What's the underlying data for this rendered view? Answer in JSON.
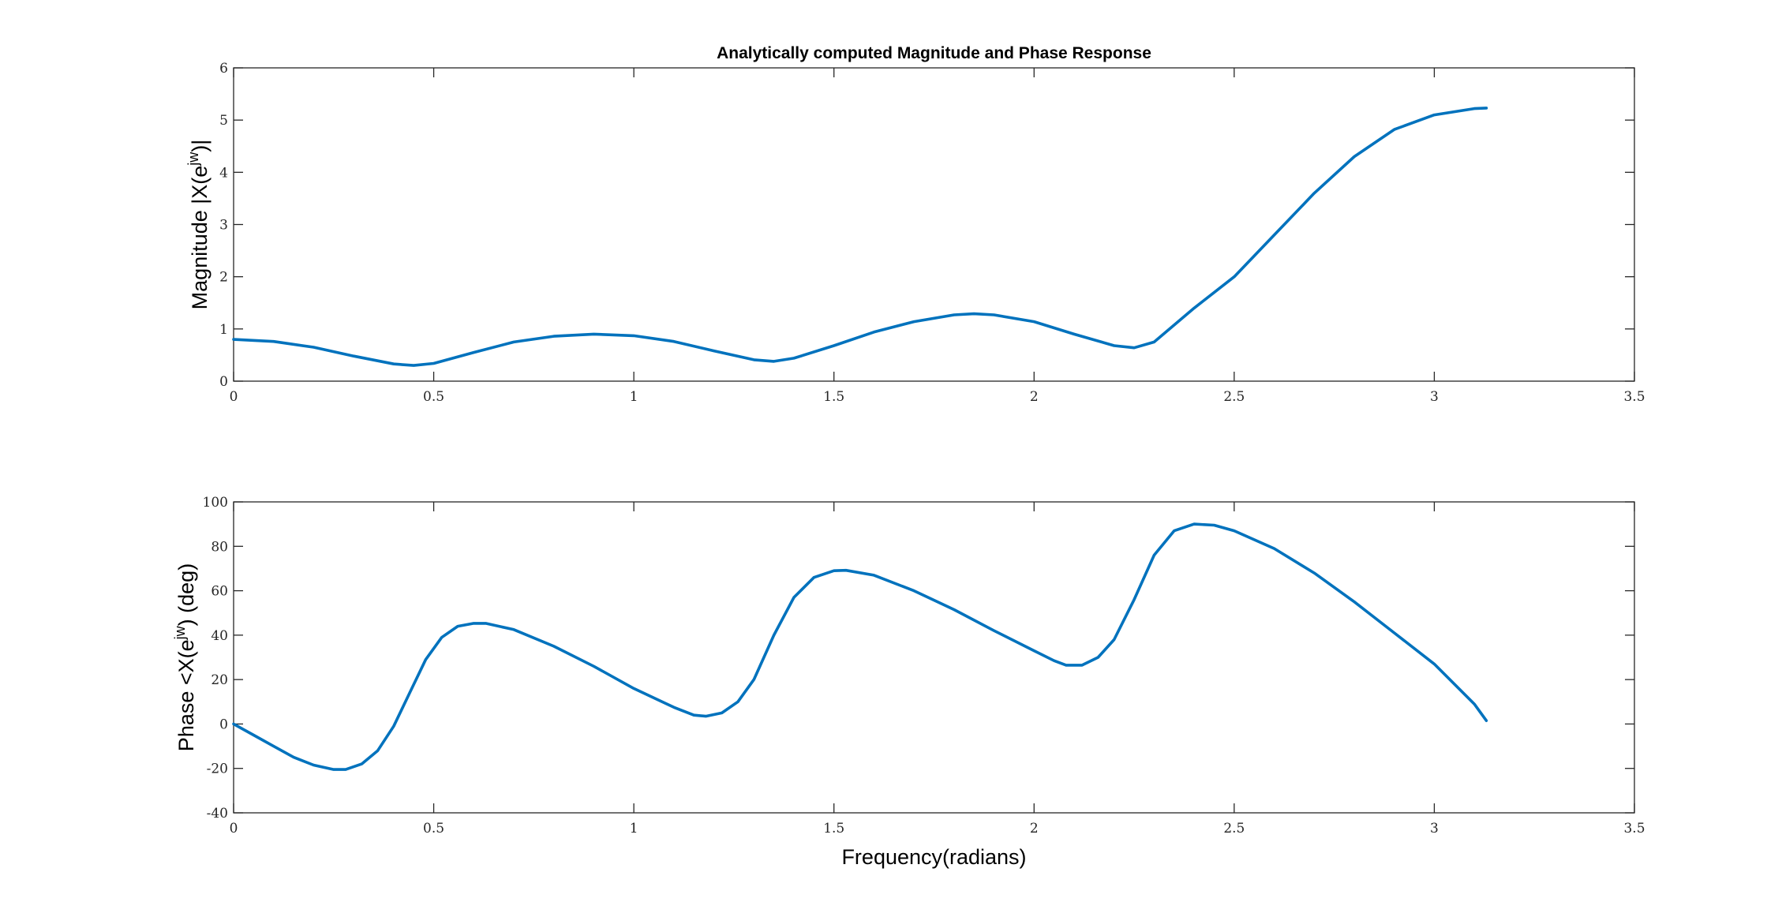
{
  "chart_data": [
    {
      "type": "line",
      "title": "Analytically computed Magnitude and Phase Response",
      "xlabel": "",
      "ylabel": {
        "prefix": "Magnitude |X(e",
        "sup": "jw",
        "suffix": ")|"
      },
      "xlim": [
        0,
        3.5
      ],
      "ylim": [
        0,
        6
      ],
      "xticks": [
        "0",
        "0.5",
        "1",
        "1.5",
        "2",
        "2.5",
        "3",
        "3.5"
      ],
      "yticks": [
        "0",
        "1",
        "2",
        "3",
        "4",
        "5",
        "6"
      ],
      "grid": false,
      "color": "#0072BD",
      "series": [
        {
          "x": [
            0,
            0.1,
            0.2,
            0.3,
            0.4,
            0.45,
            0.5,
            0.6,
            0.7,
            0.8,
            0.9,
            1.0,
            1.1,
            1.2,
            1.3,
            1.35,
            1.4,
            1.5,
            1.6,
            1.7,
            1.8,
            1.85,
            1.9,
            2.0,
            2.1,
            2.2,
            2.25,
            2.3,
            2.4,
            2.5,
            2.6,
            2.7,
            2.8,
            2.9,
            3.0,
            3.1,
            3.13
          ],
          "y": [
            0.8,
            0.76,
            0.65,
            0.48,
            0.33,
            0.3,
            0.34,
            0.55,
            0.75,
            0.86,
            0.9,
            0.87,
            0.76,
            0.58,
            0.41,
            0.38,
            0.44,
            0.68,
            0.94,
            1.14,
            1.27,
            1.29,
            1.27,
            1.14,
            0.9,
            0.68,
            0.64,
            0.75,
            1.4,
            2.0,
            2.8,
            3.6,
            4.3,
            4.82,
            5.1,
            5.22,
            5.23
          ]
        }
      ]
    },
    {
      "type": "line",
      "title": "",
      "xlabel": "Frequency(radians)",
      "ylabel": {
        "prefix": "Phase <X(e",
        "sup": "jw",
        "suffix": ") (deg)"
      },
      "xlim": [
        0,
        3.5
      ],
      "ylim": [
        -40,
        100
      ],
      "xticks": [
        "0",
        "0.5",
        "1",
        "1.5",
        "2",
        "2.5",
        "3",
        "3.5"
      ],
      "yticks": [
        "-40",
        "-20",
        "0",
        "20",
        "40",
        "60",
        "80",
        "100"
      ],
      "grid": false,
      "color": "#0072BD",
      "series": [
        {
          "x": [
            0,
            0.05,
            0.1,
            0.15,
            0.2,
            0.25,
            0.28,
            0.32,
            0.36,
            0.4,
            0.44,
            0.48,
            0.52,
            0.56,
            0.6,
            0.63,
            0.7,
            0.8,
            0.9,
            1.0,
            1.1,
            1.15,
            1.18,
            1.22,
            1.26,
            1.3,
            1.35,
            1.4,
            1.45,
            1.5,
            1.53,
            1.6,
            1.7,
            1.8,
            1.9,
            2.0,
            2.05,
            2.08,
            2.12,
            2.16,
            2.2,
            2.25,
            2.3,
            2.35,
            2.4,
            2.45,
            2.5,
            2.6,
            2.7,
            2.8,
            2.9,
            3.0,
            3.1,
            3.13
          ],
          "y": [
            0,
            -5,
            -10,
            -15,
            -18.5,
            -20.5,
            -20.5,
            -18,
            -12,
            -1,
            14,
            29,
            39,
            44,
            45.3,
            45.3,
            42.5,
            35,
            26,
            16,
            7.5,
            4,
            3.5,
            5,
            10,
            20,
            40,
            57,
            66,
            69,
            69.2,
            67,
            60,
            51.5,
            42,
            33,
            28.5,
            26.5,
            26.5,
            30,
            38,
            56,
            76,
            87,
            90,
            89.5,
            87,
            79,
            68,
            55,
            41,
            27,
            9,
            1.5
          ]
        }
      ]
    }
  ]
}
